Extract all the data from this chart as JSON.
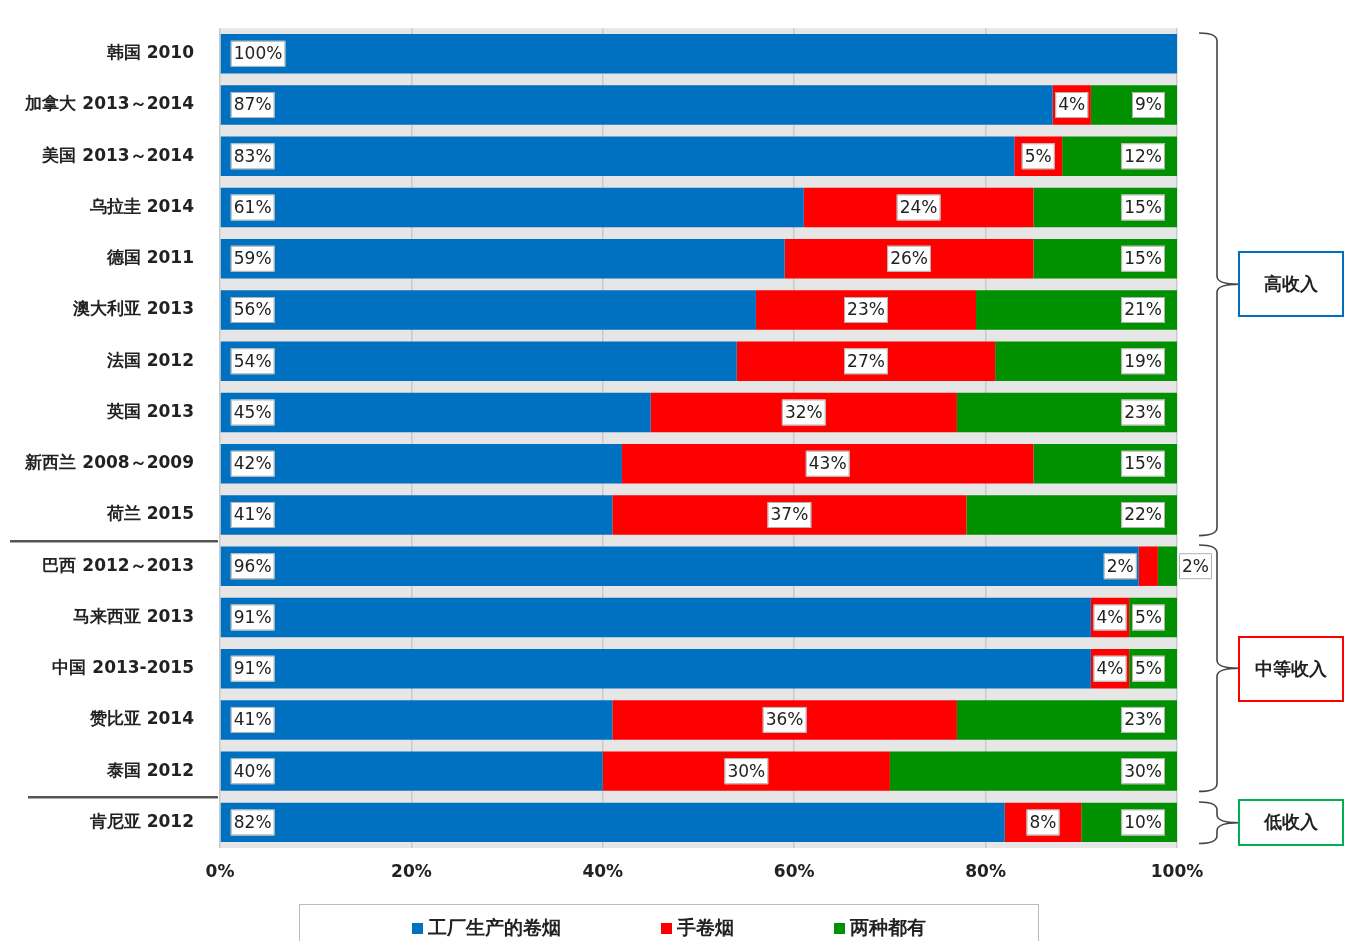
{
  "chart_data": {
    "type": "bar",
    "orientation": "horizontal",
    "stacked": true,
    "categories": [
      "韩国 2010",
      "加拿大 2013～2014",
      "美国 2013～2014",
      "乌拉圭 2014",
      "德国 2011",
      "澳大利亚 2013",
      "法国 2012",
      "英国 2013",
      "新西兰 2008～2009",
      "荷兰 2015",
      "巴西 2012～2013",
      "马来西亚 2013",
      "中国 2013-2015",
      "赞比亚 2014",
      "泰国 2012",
      "肯尼亚 2012"
    ],
    "series": [
      {
        "name": "工厂生产的卷烟",
        "color": "#0070c0",
        "values": [
          100,
          87,
          83,
          61,
          59,
          56,
          54,
          45,
          42,
          41,
          96,
          91,
          91,
          41,
          40,
          82
        ],
        "value_labels": [
          "100%",
          "87%",
          "83%",
          "61%",
          "59%",
          "56%",
          "54%",
          "45%",
          "42%",
          "41%",
          "96%",
          "91%",
          "91%",
          "41%",
          "40%",
          "82%"
        ]
      },
      {
        "name": "手卷烟",
        "color": "#ff0000",
        "values": [
          0,
          4,
          5,
          24,
          26,
          23,
          27,
          32,
          43,
          37,
          2,
          4,
          4,
          36,
          30,
          8
        ],
        "value_labels": [
          null,
          "4%",
          "5%",
          "24%",
          "26%",
          "23%",
          "27%",
          "32%",
          "43%",
          "37%",
          "2%",
          "4%",
          "4%",
          "36%",
          "30%",
          "8%"
        ]
      },
      {
        "name": "两种都有",
        "color": "#009000",
        "values": [
          0,
          9,
          12,
          15,
          15,
          21,
          19,
          23,
          15,
          22,
          2,
          5,
          5,
          23,
          30,
          10
        ],
        "value_labels": [
          null,
          "9%",
          "12%",
          "15%",
          "15%",
          "21%",
          "19%",
          "23%",
          "15%",
          "22%",
          "2%",
          "5%",
          "5%",
          "23%",
          "30%",
          "10%"
        ]
      }
    ],
    "xlim": [
      0,
      100
    ],
    "xticks": [
      {
        "value": 0,
        "label": "0%"
      },
      {
        "value": 20,
        "label": "20%"
      },
      {
        "value": 40,
        "label": "40%"
      },
      {
        "value": 60,
        "label": "60%"
      },
      {
        "value": 80,
        "label": "80%"
      },
      {
        "value": 100,
        "label": "100%"
      }
    ],
    "grid": "x",
    "legend": "bottom",
    "annotations": [
      "高收入",
      "中等收入",
      "低收入"
    ]
  }
}
